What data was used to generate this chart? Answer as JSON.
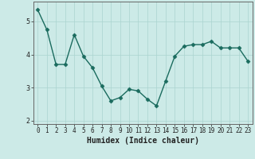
{
  "x": [
    0,
    1,
    2,
    3,
    4,
    5,
    6,
    7,
    8,
    9,
    10,
    11,
    12,
    13,
    14,
    15,
    16,
    17,
    18,
    19,
    20,
    21,
    22,
    23
  ],
  "y": [
    5.35,
    4.75,
    3.7,
    3.7,
    4.6,
    3.95,
    3.6,
    3.05,
    2.6,
    2.7,
    2.95,
    2.9,
    2.65,
    2.45,
    3.2,
    3.95,
    4.25,
    4.3,
    4.3,
    4.4,
    4.2,
    4.2,
    4.2,
    3.8
  ],
  "line_color": "#1a6b5e",
  "marker": "D",
  "marker_size": 2.5,
  "bg_color": "#cceae7",
  "grid_color": "#aad4d0",
  "xlabel": "Humidex (Indice chaleur)",
  "ylim": [
    1.9,
    5.6
  ],
  "xlim": [
    -0.5,
    23.5
  ],
  "yticks": [
    2,
    3,
    4,
    5
  ],
  "xticks": [
    0,
    1,
    2,
    3,
    4,
    5,
    6,
    7,
    8,
    9,
    10,
    11,
    12,
    13,
    14,
    15,
    16,
    17,
    18,
    19,
    20,
    21,
    22,
    23
  ]
}
